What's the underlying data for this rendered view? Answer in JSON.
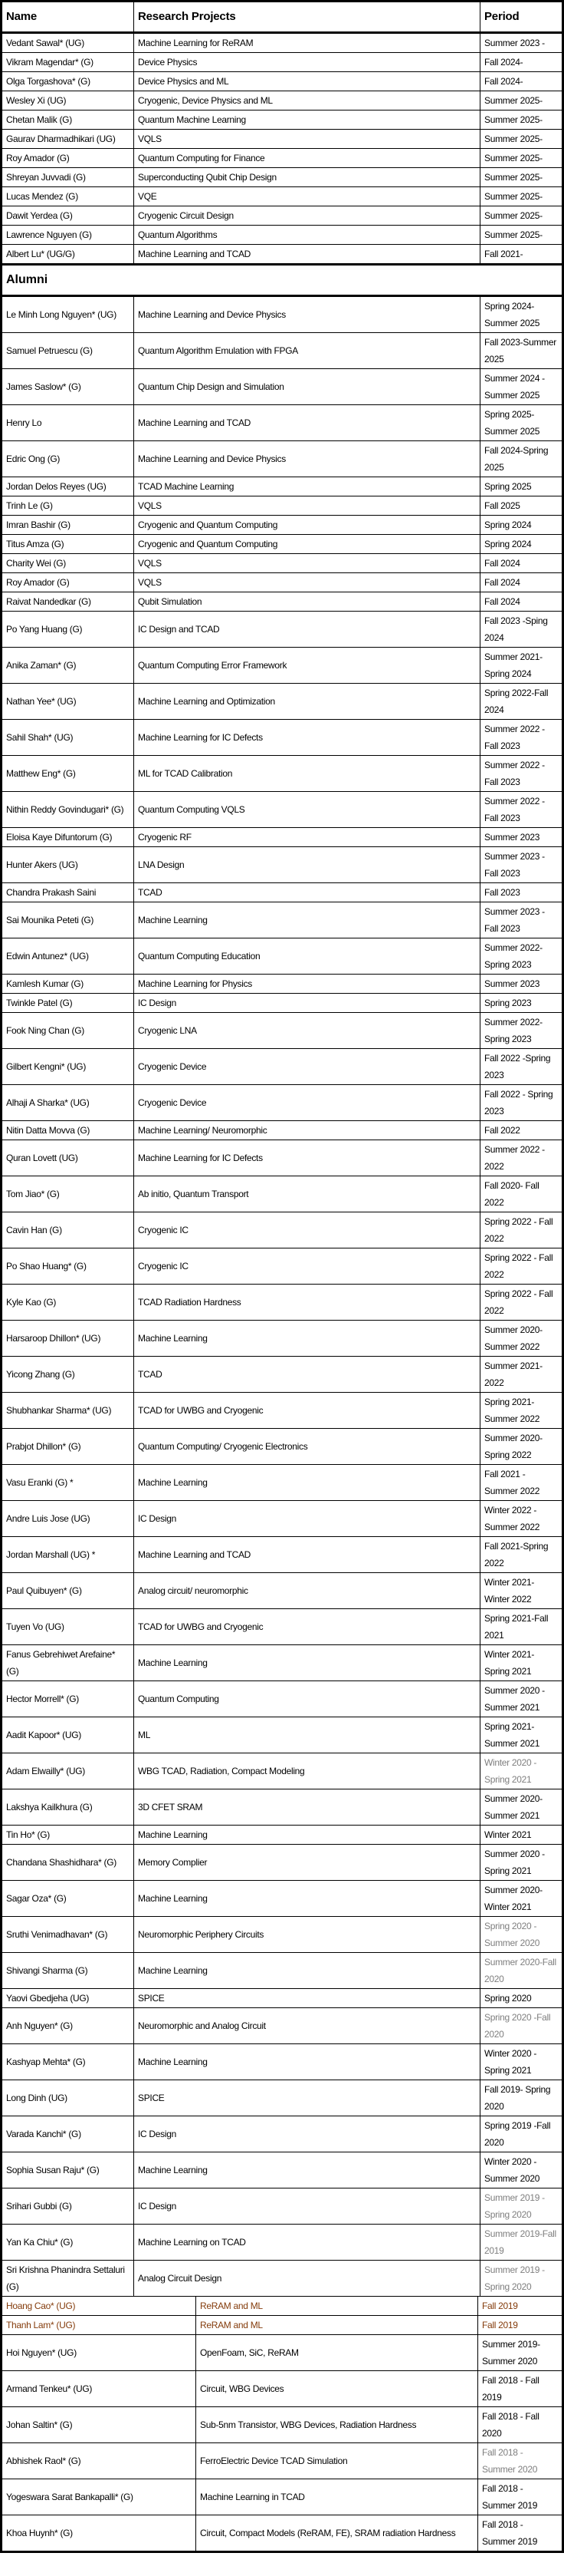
{
  "table": {
    "columns": [
      "Name",
      "Research Projects",
      "Period"
    ],
    "alumni_section_label": "Alumni",
    "current_rows": [
      {
        "name": "Vedant Sawal* (UG)",
        "project": "Machine Learning for ReRAM",
        "period": "Summer 2023 -"
      },
      {
        "name": "Vikram Magendar* (G)",
        "project": "Device Physics",
        "period": "Fall 2024-"
      },
      {
        "name": "Olga Torgashova* (G)",
        "project": "Device Physics and ML",
        "period": "Fall 2024-"
      },
      {
        "name": "Wesley Xi (UG)",
        "project": "Cryogenic, Device Physics and ML",
        "period": "Summer 2025-"
      },
      {
        "name": "Chetan Malik (G)",
        "project": "Quantum Machine Learning",
        "period": "Summer 2025-"
      },
      {
        "name": "Gaurav Dharmadhikari (UG)",
        "project": "VQLS",
        "period": "Summer 2025-"
      },
      {
        "name": "Roy Amador (G)",
        "project": "Quantum Computing for Finance",
        "period": "Summer 2025-"
      },
      {
        "name": "Shreyan Juvvadi (G)",
        "project": "Superconducting Qubit Chip Design",
        "period": "Summer 2025-"
      },
      {
        "name": "Lucas Mendez (G)",
        "project": "VQE",
        "period": "Summer 2025-"
      },
      {
        "name": "Dawit Yerdea (G)",
        "project": "Cryogenic Circuit Design",
        "period": "Summer 2025-"
      },
      {
        "name": "Lawrence Nguyen (G)",
        "project": "Quantum Algorithms",
        "period": "Summer 2025-"
      },
      {
        "name": "Albert Lu* (UG/G)",
        "project": "Machine Learning and TCAD",
        "period": "Fall 2021-"
      }
    ],
    "alumni_rows": [
      {
        "name": "Le Minh Long Nguyen* (UG)",
        "project": "Machine Learning and Device Physics",
        "period": "Spring 2024-Summer 2025"
      },
      {
        "name": "Samuel Petruescu (G)",
        "project": "Quantum Algorithm Emulation with FPGA",
        "period": "Fall 2023-Summer 2025"
      },
      {
        "name": "James Saslow* (G)",
        "project": "Quantum Chip Design and Simulation",
        "period": "Summer 2024 - Summer 2025"
      },
      {
        "name": "Henry Lo",
        "project": "Machine Learning and TCAD",
        "period": "Spring 2025-Summer 2025"
      },
      {
        "name": "Edric Ong (G)",
        "project": "Machine Learning and Device Physics",
        "period": "Fall 2024-Spring 2025"
      },
      {
        "name": "Jordan Delos Reyes (UG)",
        "project": "TCAD Machine Learning",
        "period": "Spring 2025"
      },
      {
        "name": "Trinh Le (G)",
        "project": "VQLS",
        "period": "Fall 2025"
      },
      {
        "name": "Imran Bashir (G)",
        "project": "Cryogenic and Quantum Computing",
        "period": "Spring 2024"
      },
      {
        "name": "Titus Amza (G)",
        "project": "Cryogenic and Quantum Computing",
        "period": "Spring 2024"
      },
      {
        "name": "Charity Wei (G)",
        "project": "VQLS",
        "period": "Fall 2024"
      },
      {
        "name": "Roy Amador (G)",
        "project": "VQLS",
        "period": "Fall 2024"
      },
      {
        "name": "Raivat Nandedkar (G)",
        "project": "Qubit Simulation",
        "period": "Fall 2024"
      },
      {
        "name": "Po Yang Huang (G)",
        "project": "IC Design and TCAD",
        "period": "Fall 2023 -Sping 2024"
      },
      {
        "name": "Anika Zaman* (G)",
        "project": "Quantum Computing Error Framework",
        "period": "Summer 2021-Spring 2024"
      },
      {
        "name": "Nathan Yee* (UG)",
        "project": "Machine Learning and Optimization",
        "period": "Spring 2022-Fall 2024"
      },
      {
        "name": "Sahil Shah* (UG)",
        "project": "Machine Learning for IC Defects",
        "period": "Summer 2022 - Fall 2023"
      },
      {
        "name": "Matthew Eng* (G)",
        "project": "ML for TCAD Calibration",
        "period": "Summer 2022 - Fall 2023"
      },
      {
        "name": "Nithin Reddy Govindugari* (G)",
        "project": "Quantum Computing VQLS",
        "period": "Summer 2022 - Fall 2023"
      },
      {
        "name": "Eloisa Kaye Difuntorum (G)",
        "project": "Cryogenic RF",
        "period": "Summer 2023"
      },
      {
        "name": "Hunter Akers (UG)",
        "project": "LNA Design",
        "period": "Summer 2023 - Fall 2023"
      },
      {
        "name": "Chandra Prakash Saini",
        "project": "TCAD",
        "period": "Fall 2023"
      },
      {
        "name": "Sai Mounika Peteti (G)",
        "project": "Machine Learning",
        "period": "Summer 2023 - Fall 2023"
      },
      {
        "name": "Edwin Antunez* (UG)",
        "project": "Quantum Computing Education",
        "period": "Summer 2022-Spring 2023"
      },
      {
        "name": "Kamlesh Kumar (G)",
        "project": "Machine Learning for Physics",
        "period": "Summer 2023"
      },
      {
        "name": "Twinkle Patel (G)",
        "project": "IC Design",
        "period": "Spring 2023"
      },
      {
        "name": "Fook Ning Chan (G)",
        "project": "Cryogenic LNA",
        "period": "Summer 2022-Spring 2023"
      },
      {
        "name": "Gilbert Kengni* (UG)",
        "project": "Cryogenic Device",
        "period": "Fall 2022 -Spring 2023"
      },
      {
        "name": "Alhaji A Sharka* (UG)",
        "project": "Cryogenic Device",
        "period": "Fall 2022 - Spring 2023"
      },
      {
        "name": "Nitin Datta Movva (G)",
        "project": "Machine Learning/ Neuromorphic",
        "period": "Fall 2022"
      },
      {
        "name": "Quran Lovett (UG)",
        "project": "Machine Learning for IC Defects",
        "period": "Summer 2022 - 2022"
      },
      {
        "name": "Tom Jiao* (G)",
        "project": "Ab initio, Quantum Transport",
        "period": "Fall 2020- Fall 2022"
      },
      {
        "name": "Cavin Han (G)",
        "project": "Cryogenic IC",
        "period": "Spring 2022 - Fall 2022"
      },
      {
        "name": "Po Shao Huang* (G)",
        "project": "Cryogenic IC",
        "period": "Spring 2022 - Fall 2022"
      },
      {
        "name": "Kyle Kao (G)",
        "project": "TCAD Radiation Hardness",
        "period": "Spring 2022 - Fall 2022"
      },
      {
        "name": "Harsaroop Dhillon* (UG)",
        "project": "Machine Learning",
        "period": "Summer 2020-Summer 2022"
      },
      {
        "name": "Yicong Zhang (G)",
        "project": "TCAD",
        "period": "Summer 2021-2022"
      },
      {
        "name": "Shubhankar Sharma* (UG)",
        "project": "TCAD for UWBG and Cryogenic",
        "period": "Spring 2021-Summer 2022"
      },
      {
        "name": "Prabjot Dhillon* (G)",
        "project": "Quantum Computing/ Cryogenic Electronics",
        "period": "Summer 2020-Spring 2022"
      },
      {
        "name": "Vasu Eranki (G) *",
        "project": "Machine Learning",
        "period": "Fall 2021 - Summer 2022"
      },
      {
        "name": "Andre Luis Jose (UG)",
        "project": "IC Design",
        "period": "Winter 2022 - Summer 2022"
      },
      {
        "name": "Jordan Marshall (UG) *",
        "project": "Machine Learning and TCAD",
        "period": "Fall 2021-Spring 2022"
      },
      {
        "name": "Paul Quibuyen* (G)",
        "project": "Analog circuit/ neuromorphic",
        "period": "Winter 2021-Winter 2022"
      },
      {
        "name": "Tuyen Vo (UG)",
        "project": "TCAD for UWBG and Cryogenic",
        "period": "Spring 2021-Fall 2021"
      },
      {
        "name": "Fanus Gebrehiwet Arefaine* (G)",
        "project": "Machine Learning",
        "period": "Winter 2021-Spring 2021"
      },
      {
        "name": "Hector Morrell* (G)",
        "project": "Quantum Computing",
        "period": "Summer 2020 - Summer 2021"
      },
      {
        "name": "Aadit Kapoor* (UG)",
        "project": "ML",
        "period": "Spring 2021-Summer 2021"
      },
      {
        "name": "Adam Elwailly* (UG)",
        "project": "WBG TCAD, Radiation, Compact Modeling",
        "period": "Winter 2020 - Spring 2021",
        "period_muted": true
      },
      {
        "name": "Lakshya Kailkhura (G)",
        "project": "3D CFET SRAM",
        "period": "Summer 2020-Summer 2021"
      },
      {
        "name": "Tin Ho* (G)",
        "project": "Machine Learning",
        "period": "Winter 2021"
      },
      {
        "name": "Chandana Shashidhara* (G)",
        "project": "Memory Complier",
        "period": "Summer 2020 - Spring 2021"
      },
      {
        "name": "Sagar Oza* (G)",
        "project": "Machine Learning",
        "period": "Summer 2020-Winter 2021"
      },
      {
        "name": "Sruthi Venimadhavan* (G)",
        "project": "Neuromorphic Periphery Circuits",
        "period": "Spring 2020 - Summer 2020",
        "period_muted": true
      },
      {
        "name": "Shivangi Sharma (G)",
        "project": "Machine Learning",
        "period": "Summer 2020-Fall 2020",
        "period_muted": true
      },
      {
        "name": "Yaovi Gbedjeha (UG)",
        "project": "SPICE",
        "period": "Spring 2020"
      },
      {
        "name": "Anh Nguyen* (G)",
        "project": "Neuromorphic and Analog Circuit",
        "period": "Spring 2020 -Fall 2020",
        "period_muted": true
      },
      {
        "name": "Kashyap Mehta* (G)",
        "project": "Machine Learning",
        "period": "Winter 2020 - Spring 2021"
      },
      {
        "name": "Long Dinh (UG)",
        "project": "SPICE",
        "period": "Fall 2019- Spring 2020"
      },
      {
        "name": "Varada Kanchi* (G)",
        "project": "IC Design",
        "period": "Spring 2019 -Fall 2020"
      },
      {
        "name": "Sophia Susan Raju* (G)",
        "project": "Machine Learning",
        "period": "Winter 2020 - Summer 2020"
      },
      {
        "name": "Srihari Gubbi (G)",
        "project": "IC Design",
        "period": "Summer 2019 - Spring 2020",
        "period_muted": true
      },
      {
        "name": "Yan Ka Chiu* (G)",
        "project": "Machine Learning on TCAD",
        "period": "Summer 2019-Fall 2019",
        "period_muted": true
      },
      {
        "name": "Sri Krishna Phanindra Settaluri (G)",
        "project": "Analog Circuit Design",
        "period": "Summer 2019 - Spring 2020",
        "period_muted": true
      },
      {
        "name": "Hoang Cao* (UG)",
        "project": "ReRAM and ML",
        "period": "Fall 2019",
        "wide_name": true,
        "highlighted": true
      },
      {
        "name": "Thanh Lam* (UG)",
        "project": "ReRAM and ML",
        "period": "Fall 2019",
        "wide_name": true,
        "highlighted": true
      },
      {
        "name": "Hoi Nguyen* (UG)",
        "project": "OpenFoam, SiC, ReRAM",
        "period": "Summer 2019-Summer 2020",
        "wide_name": true
      },
      {
        "name": "Armand Tenkeu* (UG)",
        "project": "Circuit, WBG Devices",
        "period": "Fall 2018 - Fall 2019",
        "wide_name": true
      },
      {
        "name": "Johan Saltin* (G)",
        "project": "Sub-5nm Transistor, WBG Devices, Radiation Hardness",
        "period": "Fall 2018 - Fall 2020",
        "wide_name": true
      },
      {
        "name": "Abhishek Raol* (G)",
        "project": "FerroElectric Device TCAD Simulation",
        "period": "Fall 2018 - Summer 2020",
        "wide_name": true,
        "period_muted": true
      },
      {
        "name": "Yogeswara Sarat Bankapalli* (G)",
        "project": "Machine Learning in TCAD",
        "period": "Fall 2018 - Summer 2019",
        "wide_name": true
      },
      {
        "name": "Khoa Huynh* (G)",
        "project": "Circuit, Compact Models (ReRAM, FE), SRAM radiation Hardness",
        "period": "Fall 2018 - Summer 2019",
        "wide_name": true
      }
    ]
  },
  "colors": {
    "border": "#000000",
    "text": "#000000",
    "muted_period": "#7f7f7f",
    "highlight": "#843C0C",
    "background": "#ffffff"
  }
}
